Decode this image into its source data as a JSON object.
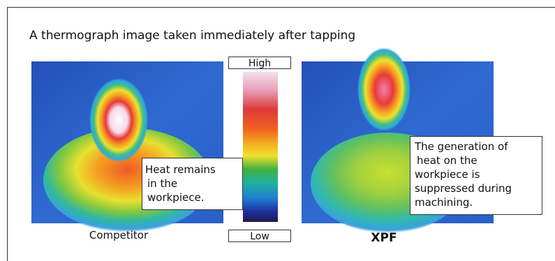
{
  "title": "A thermograph image taken immediately after tapping",
  "scale": {
    "high": "High",
    "low": "Low"
  },
  "images": [
    {
      "caption": "Competitor",
      "note": [
        "Heat remains",
        "in the",
        "workpiece."
      ]
    },
    {
      "caption": "XPF",
      "note": [
        "The generation of",
        "heat on the",
        "workpiece is",
        "suppressed during",
        "machining."
      ]
    }
  ]
}
